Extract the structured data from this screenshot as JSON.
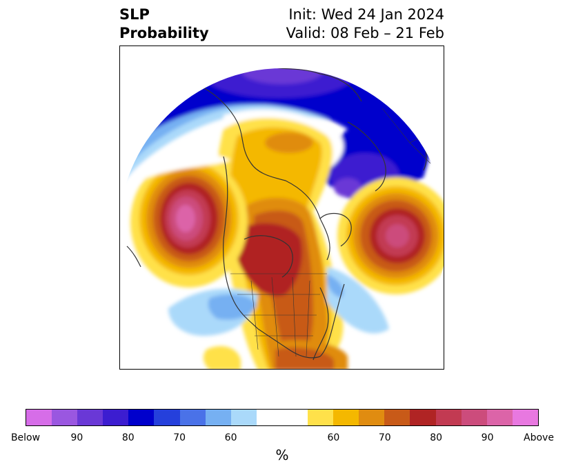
{
  "header": {
    "variable_line1": "SLP",
    "variable_line2": "Probability",
    "init": "Init: Wed 24 Jan 2024",
    "valid": "Valid: 08 Feb – 21 Feb"
  },
  "colorbar": {
    "unit": "%",
    "colors": [
      "#d66de8",
      "#9a57e0",
      "#6a38d6",
      "#3c1dd0",
      "#0000cc",
      "#2540dc",
      "#4a72e8",
      "#76b0f2",
      "#aad9fa",
      "#ffffff",
      "#ffe14a",
      "#f4b800",
      "#e08c10",
      "#c85a18",
      "#b02424",
      "#c23a52",
      "#cc4c7c",
      "#dc64a8",
      "#e878e0"
    ],
    "tick_labels": [
      "Below",
      "90",
      "80",
      "70",
      "60",
      "60",
      "70",
      "80",
      "90",
      "Above"
    ]
  },
  "colors": {
    "land_outline": "#333333",
    "frame": "#000000"
  }
}
